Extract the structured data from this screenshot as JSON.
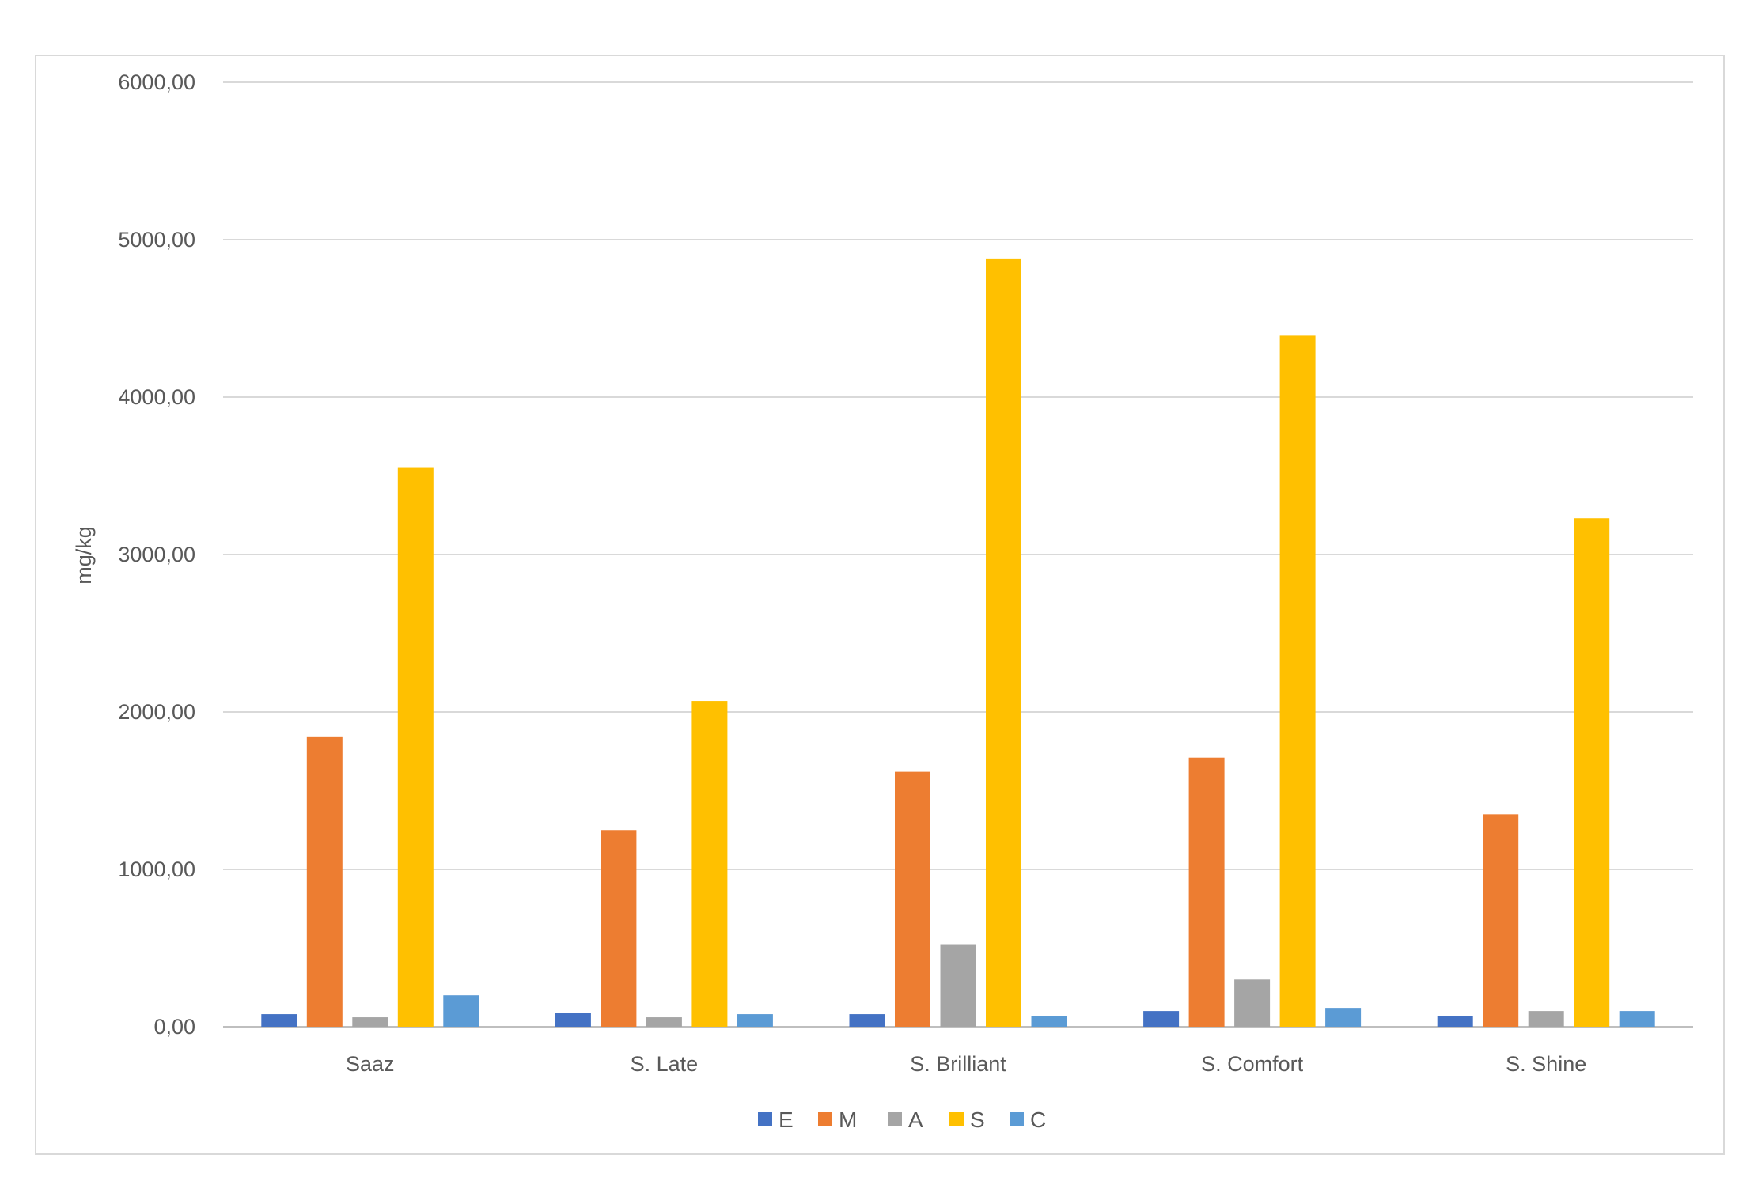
{
  "chart_data": {
    "type": "bar",
    "title": "",
    "xlabel": "",
    "ylabel": "mg/kg",
    "ylim": [
      0,
      6000
    ],
    "yticks": [
      0,
      1000,
      2000,
      3000,
      4000,
      5000,
      6000
    ],
    "ytick_labels": [
      "0,00",
      "1000,00",
      "2000,00",
      "3000,00",
      "4000,00",
      "5000,00",
      "6000,00"
    ],
    "grid": true,
    "legend_position": "bottom",
    "categories": [
      "Saaz",
      "S. Late",
      "S. Brilliant",
      "S. Comfort",
      "S. Shine"
    ],
    "series": [
      {
        "name": "E",
        "color": "#4472c4",
        "values": [
          80,
          90,
          80,
          100,
          70
        ]
      },
      {
        "name": "M",
        "color": "#ed7d31",
        "values": [
          1840,
          1250,
          1620,
          1710,
          1350
        ]
      },
      {
        "name": "A",
        "color": "#a5a5a5",
        "values": [
          60,
          60,
          520,
          300,
          100
        ]
      },
      {
        "name": "S",
        "color": "#ffc000",
        "values": [
          3550,
          2070,
          4880,
          4390,
          3230
        ]
      },
      {
        "name": "C",
        "color": "#5b9bd5",
        "values": [
          200,
          80,
          70,
          120,
          100
        ]
      }
    ]
  }
}
